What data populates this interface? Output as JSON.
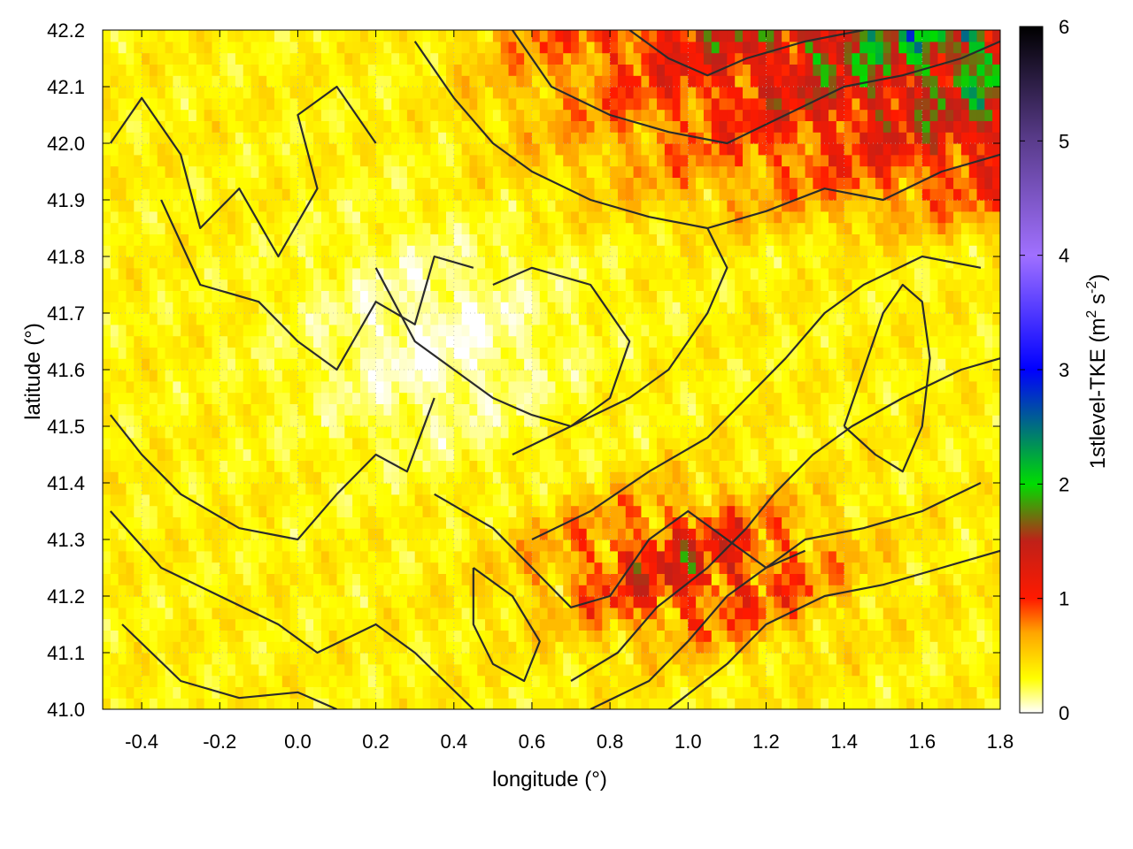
{
  "chart_data": {
    "type": "heatmap",
    "title": "",
    "xlabel": "longitude (°)",
    "ylabel": "latitude (°)",
    "xlim": [
      -0.5,
      1.8
    ],
    "ylim": [
      41.0,
      42.2
    ],
    "x_ticks": [
      "-0.4",
      "-0.2",
      "0.0",
      "0.2",
      "0.4",
      "0.6",
      "0.8",
      "1.0",
      "1.2",
      "1.4",
      "1.6",
      "1.8"
    ],
    "y_ticks": [
      "41.0",
      "41.1",
      "41.2",
      "41.3",
      "41.4",
      "41.5",
      "41.6",
      "41.7",
      "41.8",
      "41.9",
      "42.0",
      "42.1",
      "42.2"
    ],
    "grid": true,
    "colorbar": {
      "label": "1stlevel-TKE (m",
      "label_sup1": "2",
      "label_mid": " s",
      "label_sup2": "-2",
      "label_end": ")",
      "range": [
        0,
        6
      ],
      "ticks": [
        "0",
        "1",
        "2",
        "3",
        "4",
        "5",
        "6"
      ],
      "stops": [
        {
          "value": 0.0,
          "color": "#ffffff"
        },
        {
          "value": 0.3,
          "color": "#ffff00"
        },
        {
          "value": 0.7,
          "color": "#ffa500"
        },
        {
          "value": 1.0,
          "color": "#ff1a00"
        },
        {
          "value": 1.5,
          "color": "#c02018"
        },
        {
          "value": 2.0,
          "color": "#00dd00"
        },
        {
          "value": 3.0,
          "color": "#0000ff"
        },
        {
          "value": 4.0,
          "color": "#a070ff"
        },
        {
          "value": 5.0,
          "color": "#5a3c8c"
        },
        {
          "value": 6.0,
          "color": "#000000"
        }
      ]
    },
    "contour_color": "#2b2b2b"
  }
}
